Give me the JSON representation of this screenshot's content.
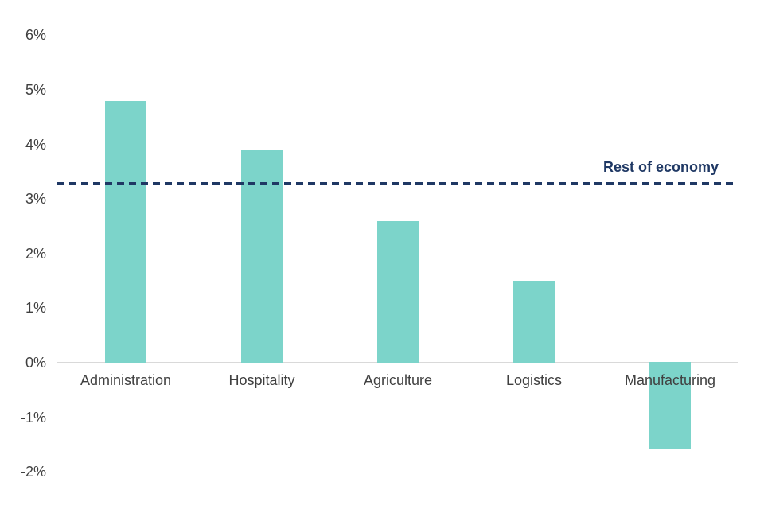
{
  "chart_data": {
    "type": "bar",
    "categories": [
      "Administration",
      "Hospitality",
      "Agriculture",
      "Logistics",
      "Manufacturing"
    ],
    "values": [
      4.8,
      3.9,
      2.6,
      1.5,
      -1.6
    ],
    "title": "",
    "xlabel": "",
    "ylabel": "",
    "ylim": [
      -2,
      6
    ],
    "ytick_values": [
      6,
      5,
      4,
      3,
      2,
      1,
      0,
      -1,
      -2
    ],
    "ytick_labels": [
      "6%",
      "5%",
      "4%",
      "3%",
      "2%",
      "1%",
      "0%",
      "-1%",
      "-2%"
    ],
    "grid": false,
    "legend": false,
    "reference_line": {
      "value": 3.3,
      "label": "Rest of economy"
    }
  },
  "colors": {
    "bar": "#7CD4CA",
    "reference_line": "#1F3864",
    "reference_label_text": "#1F3864",
    "axis_line": "#D9D9D9",
    "tick_text": "#404040",
    "background": "#FFFFFF"
  }
}
